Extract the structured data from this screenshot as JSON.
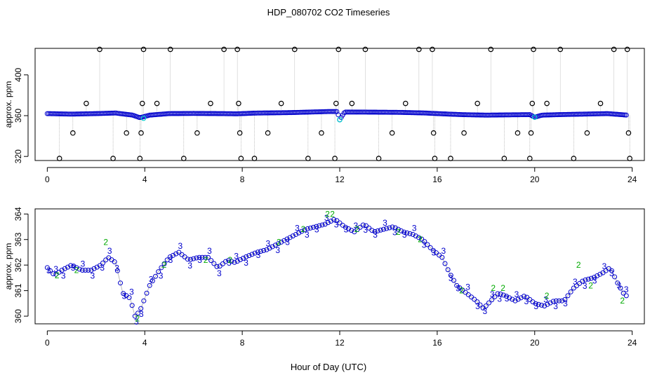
{
  "title": "HDP_080702  CO2 Timeseries",
  "xlabel": "Hour of Day (UTC)",
  "colors": {
    "background": "#ffffff",
    "axis": "#000000",
    "top_main": "#0000cc",
    "top_highlight": "#00cccc",
    "top_outlier": "#000000",
    "top_connector": "#999999",
    "series_3": "#0000cc",
    "series_2": "#00aa00",
    "connector": "#aaaaaa"
  },
  "chart_data": [
    {
      "type": "scatter",
      "panel": "top",
      "ylabel": "approx. ppm",
      "xlim": [
        -0.5,
        24.5
      ],
      "ylim": [
        316,
        426
      ],
      "x_ticks": [
        0,
        4,
        8,
        12,
        16,
        20,
        24
      ],
      "y_ticks": [
        320,
        360,
        400
      ],
      "baseline": [
        [
          0.0,
          362.0
        ],
        [
          1.0,
          361.5
        ],
        [
          2.0,
          362.0
        ],
        [
          2.8,
          362.6
        ],
        [
          3.5,
          360.5
        ],
        [
          3.8,
          358.0
        ],
        [
          4.2,
          360.5
        ],
        [
          5.0,
          362.0
        ],
        [
          6.0,
          362.2
        ],
        [
          7.0,
          362.0
        ],
        [
          7.8,
          361.8
        ],
        [
          8.5,
          362.5
        ],
        [
          10.0,
          363.0
        ],
        [
          11.5,
          364.0
        ],
        [
          11.9,
          364.0
        ],
        [
          12.0,
          356.0
        ],
        [
          12.2,
          363.5
        ],
        [
          13.0,
          363.5
        ],
        [
          14.5,
          363.2
        ],
        [
          15.5,
          362.6
        ],
        [
          16.0,
          362.0
        ],
        [
          17.0,
          361.0
        ],
        [
          18.0,
          360.5
        ],
        [
          19.0,
          360.8
        ],
        [
          19.8,
          361.0
        ],
        [
          20.0,
          358.5
        ],
        [
          20.3,
          360.5
        ],
        [
          21.0,
          361.0
        ],
        [
          22.0,
          361.5
        ],
        [
          23.0,
          362.0
        ],
        [
          23.8,
          360.5
        ]
      ],
      "highlight_points": [
        {
          "x": 3.95,
          "y": 357.5
        },
        {
          "x": 12.0,
          "y": 356.0
        },
        {
          "x": 20.0,
          "y": 358.5
        }
      ],
      "outliers": [
        {
          "x": 0.5,
          "y": 318
        },
        {
          "x": 1.05,
          "y": 343
        },
        {
          "x": 1.6,
          "y": 372
        },
        {
          "x": 2.15,
          "y": 425
        },
        {
          "x": 2.7,
          "y": 318
        },
        {
          "x": 3.25,
          "y": 343
        },
        {
          "x": 3.8,
          "y": 318
        },
        {
          "x": 3.85,
          "y": 343
        },
        {
          "x": 3.9,
          "y": 372
        },
        {
          "x": 3.95,
          "y": 425
        },
        {
          "x": 4.5,
          "y": 372
        },
        {
          "x": 5.05,
          "y": 425
        },
        {
          "x": 5.6,
          "y": 318
        },
        {
          "x": 6.15,
          "y": 343
        },
        {
          "x": 6.7,
          "y": 372
        },
        {
          "x": 7.25,
          "y": 425
        },
        {
          "x": 7.8,
          "y": 425
        },
        {
          "x": 7.85,
          "y": 372
        },
        {
          "x": 7.9,
          "y": 343
        },
        {
          "x": 7.95,
          "y": 318
        },
        {
          "x": 8.5,
          "y": 318
        },
        {
          "x": 9.05,
          "y": 343
        },
        {
          "x": 9.6,
          "y": 372
        },
        {
          "x": 10.15,
          "y": 425
        },
        {
          "x": 10.7,
          "y": 318
        },
        {
          "x": 11.25,
          "y": 343
        },
        {
          "x": 11.8,
          "y": 318
        },
        {
          "x": 11.85,
          "y": 372
        },
        {
          "x": 11.95,
          "y": 425
        },
        {
          "x": 12.5,
          "y": 372
        },
        {
          "x": 13.05,
          "y": 425
        },
        {
          "x": 13.6,
          "y": 318
        },
        {
          "x": 14.15,
          "y": 343
        },
        {
          "x": 14.7,
          "y": 372
        },
        {
          "x": 15.25,
          "y": 425
        },
        {
          "x": 15.8,
          "y": 425
        },
        {
          "x": 15.85,
          "y": 343
        },
        {
          "x": 15.9,
          "y": 318
        },
        {
          "x": 16.55,
          "y": 318
        },
        {
          "x": 17.1,
          "y": 343
        },
        {
          "x": 17.65,
          "y": 372
        },
        {
          "x": 18.2,
          "y": 425
        },
        {
          "x": 18.75,
          "y": 318
        },
        {
          "x": 19.3,
          "y": 343
        },
        {
          "x": 19.8,
          "y": 318
        },
        {
          "x": 19.85,
          "y": 343
        },
        {
          "x": 19.9,
          "y": 372
        },
        {
          "x": 19.95,
          "y": 425
        },
        {
          "x": 20.5,
          "y": 372
        },
        {
          "x": 21.05,
          "y": 425
        },
        {
          "x": 21.6,
          "y": 318
        },
        {
          "x": 22.15,
          "y": 343
        },
        {
          "x": 22.7,
          "y": 372
        },
        {
          "x": 23.25,
          "y": 425
        },
        {
          "x": 23.8,
          "y": 425
        },
        {
          "x": 23.85,
          "y": 343
        },
        {
          "x": 23.9,
          "y": 318
        }
      ]
    },
    {
      "type": "scatter",
      "panel": "bottom",
      "ylabel": "approx. ppm",
      "xlim": [
        -0.5,
        24.5
      ],
      "ylim": [
        359.7,
        364.2
      ],
      "x_ticks": [
        0,
        4,
        8,
        12,
        16,
        20,
        24
      ],
      "y_ticks": [
        360,
        361,
        362,
        363,
        364
      ],
      "series": [
        {
          "symbols": [
            "o",
            "3"
          ],
          "points": [
            [
              0.0,
              361.9
            ],
            [
              0.3,
              361.6
            ],
            [
              0.6,
              361.8
            ],
            [
              1.0,
              362.0
            ],
            [
              1.4,
              361.8
            ],
            [
              1.8,
              361.8
            ],
            [
              2.2,
              362.0
            ],
            [
              2.5,
              362.3
            ],
            [
              2.8,
              362.1
            ],
            [
              3.1,
              360.9
            ],
            [
              3.4,
              360.7
            ],
            [
              3.6,
              360.0
            ],
            [
              3.8,
              360.2
            ],
            [
              4.2,
              361.2
            ],
            [
              4.6,
              361.8
            ],
            [
              5.0,
              362.3
            ],
            [
              5.4,
              362.5
            ],
            [
              5.8,
              362.2
            ],
            [
              6.2,
              362.3
            ],
            [
              6.6,
              362.3
            ],
            [
              7.0,
              361.9
            ],
            [
              7.4,
              362.2
            ],
            [
              7.7,
              362.1
            ],
            [
              8.1,
              362.3
            ],
            [
              8.6,
              362.5
            ],
            [
              9.0,
              362.6
            ],
            [
              9.4,
              362.8
            ],
            [
              9.8,
              363.0
            ],
            [
              10.2,
              363.2
            ],
            [
              10.6,
              363.4
            ],
            [
              11.0,
              363.5
            ],
            [
              11.4,
              363.6
            ],
            [
              11.8,
              363.8
            ],
            [
              12.2,
              363.5
            ],
            [
              12.6,
              363.3
            ],
            [
              13.0,
              363.6
            ],
            [
              13.4,
              363.3
            ],
            [
              13.8,
              363.4
            ],
            [
              14.2,
              363.5
            ],
            [
              14.6,
              363.3
            ],
            [
              15.0,
              363.2
            ],
            [
              15.4,
              363.0
            ],
            [
              15.8,
              362.6
            ],
            [
              16.2,
              362.3
            ],
            [
              16.5,
              361.7
            ],
            [
              16.8,
              361.2
            ],
            [
              17.2,
              360.9
            ],
            [
              17.6,
              360.6
            ],
            [
              17.9,
              360.3
            ],
            [
              18.2,
              360.6
            ],
            [
              18.5,
              360.9
            ],
            [
              18.8,
              360.8
            ],
            [
              19.2,
              360.6
            ],
            [
              19.6,
              360.8
            ],
            [
              20.0,
              360.5
            ],
            [
              20.4,
              360.4
            ],
            [
              20.8,
              360.6
            ],
            [
              21.2,
              360.6
            ],
            [
              21.6,
              361.1
            ],
            [
              22.0,
              361.4
            ],
            [
              22.4,
              361.5
            ],
            [
              22.8,
              361.7
            ],
            [
              23.1,
              361.9
            ],
            [
              23.4,
              361.3
            ],
            [
              23.7,
              360.8
            ]
          ]
        },
        {
          "symbols": [
            "2"
          ],
          "points": [
            [
              0.4,
              361.6
            ],
            [
              1.2,
              361.8
            ],
            [
              2.4,
              362.9
            ],
            [
              3.7,
              359.9
            ],
            [
              4.8,
              362.0
            ],
            [
              6.5,
              362.2
            ],
            [
              7.5,
              362.2
            ],
            [
              9.5,
              362.9
            ],
            [
              10.5,
              363.4
            ],
            [
              11.5,
              364.0
            ],
            [
              11.7,
              364.0
            ],
            [
              12.7,
              363.4
            ],
            [
              14.4,
              363.3
            ],
            [
              15.3,
              363.0
            ],
            [
              17.0,
              361.0
            ],
            [
              18.3,
              361.1
            ],
            [
              18.7,
              361.1
            ],
            [
              20.5,
              360.8
            ],
            [
              21.8,
              362.0
            ],
            [
              22.3,
              361.2
            ],
            [
              23.6,
              360.6
            ]
          ]
        }
      ]
    }
  ]
}
